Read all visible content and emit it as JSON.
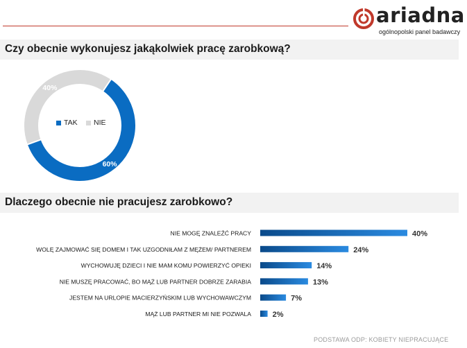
{
  "brand": {
    "name": "ariadna",
    "tagline": "ogólnopolski panel badawczy",
    "accent": "#c0392b"
  },
  "questions": {
    "q1": "Czy obecnie wykonujesz jakąkolwiek pracę zarobkową?",
    "q2": "Dlaczego obecnie nie pracujesz zarobkowo?"
  },
  "chart_data": [
    {
      "type": "pie",
      "donut": true,
      "categories": [
        "TAK",
        "NIE"
      ],
      "values": [
        60,
        40
      ],
      "value_labels": [
        "60%",
        "40%"
      ],
      "colors": [
        "#0a6cc2",
        "#d9d9d9"
      ],
      "legend_placement": "center"
    },
    {
      "type": "bar",
      "orientation": "horizontal",
      "categories": [
        "NIE MOGĘ ZNALEŹĆ PRACY",
        "WOLĘ ZAJMOWAĆ SIĘ DOMEM I TAK UZGODNIŁAM Z MĘŻEM/ PARTNEREM",
        "WYCHOWUJĘ DZIECI I NIE MAM KOMU POWIERZYĆ OPIEKI",
        "NIE MUSZĘ PRACOWAĆ, BO MĄŻ LUB PARTNER DOBRZE ZARABIA",
        "JESTEM NA URLOPIE MACIERZYŃSKIM LUB WYCHOWAWCZYM",
        "MĄŻ LUB PARTNER MI NIE POZWALA"
      ],
      "values": [
        40,
        24,
        14,
        13,
        7,
        2
      ],
      "value_labels": [
        "40%",
        "24%",
        "14%",
        "13%",
        "7%",
        "2%"
      ],
      "colors": [
        "#0a4a8a",
        "#2a8ae0"
      ],
      "xlim": [
        0,
        40
      ]
    }
  ],
  "footer": "PODSTAWA ODP: KOBIETY NIEPRACUJĄCE"
}
